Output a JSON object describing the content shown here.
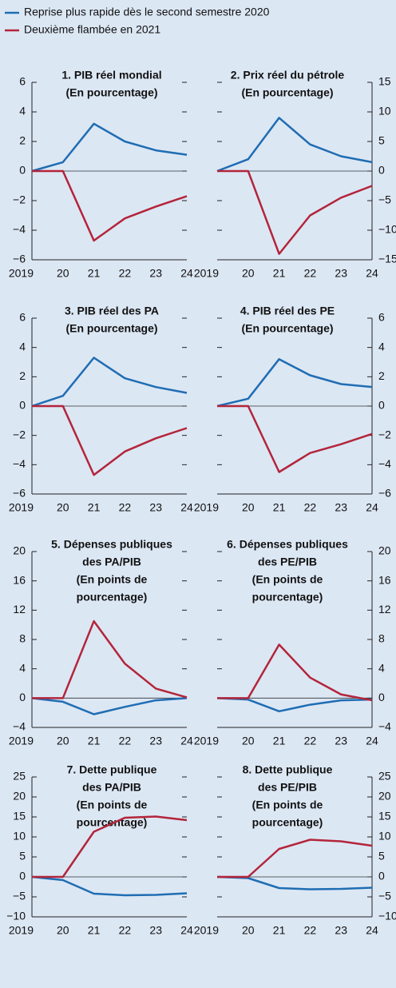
{
  "legend": [
    {
      "name": "Reprise plus rapide dès le second semestre 2020",
      "color": "#1f6db3"
    },
    {
      "name": "Deuxième flambée en 2021",
      "color": "#b3253a"
    }
  ],
  "chart_data": [
    {
      "type": "line",
      "title": [
        "1. PIB réel mondial"
      ],
      "subtitle": [
        "(En pourcentage)"
      ],
      "categories": [
        "2019",
        "20",
        "21",
        "22",
        "23",
        "24"
      ],
      "series": [
        {
          "color": "#1f6db3",
          "values": [
            0,
            0.6,
            3.2,
            2.0,
            1.4,
            1.1
          ]
        },
        {
          "color": "#b3253a",
          "values": [
            0,
            0,
            -4.7,
            -3.2,
            -2.4,
            -1.7
          ]
        }
      ],
      "ylim": [
        -6,
        6
      ],
      "yticks": [
        {
          "value": -6,
          "label": "−6"
        },
        {
          "value": -4,
          "label": "−4"
        },
        {
          "value": -2,
          "label": "−2"
        },
        0,
        2,
        4,
        6
      ]
    },
    {
      "type": "line",
      "title": [
        "2. Prix réel du pétrole"
      ],
      "subtitle": [
        "(En pourcentage)"
      ],
      "categories": [
        "2019",
        "20",
        "21",
        "22",
        "23",
        "24"
      ],
      "series": [
        {
          "color": "#1f6db3",
          "values": [
            0,
            2,
            9,
            4.5,
            2.5,
            1.5
          ]
        },
        {
          "color": "#b3253a",
          "values": [
            0,
            0,
            -14,
            -7.5,
            -4.5,
            -2.5
          ]
        }
      ],
      "ylim": [
        -15,
        15
      ],
      "yticks": [
        {
          "value": -15,
          "label": "−15"
        },
        {
          "value": -10,
          "label": "−10"
        },
        {
          "value": -5,
          "label": "−5"
        },
        0,
        5,
        10,
        15
      ]
    },
    {
      "type": "line",
      "title": [
        "3. PIB réel des PA"
      ],
      "subtitle": [
        "(En pourcentage)"
      ],
      "categories": [
        "2019",
        "20",
        "21",
        "22",
        "23",
        "24"
      ],
      "series": [
        {
          "color": "#1f6db3",
          "values": [
            0,
            0.7,
            3.3,
            1.9,
            1.3,
            0.9
          ]
        },
        {
          "color": "#b3253a",
          "values": [
            0,
            0,
            -4.7,
            -3.1,
            -2.2,
            -1.5
          ]
        }
      ],
      "ylim": [
        -6,
        6
      ],
      "yticks": [
        {
          "value": -6,
          "label": "−6"
        },
        {
          "value": -4,
          "label": "−4"
        },
        {
          "value": -2,
          "label": "−2"
        },
        0,
        2,
        4,
        6
      ]
    },
    {
      "type": "line",
      "title": [
        "4. PIB réel des PE"
      ],
      "subtitle": [
        "(En pourcentage)"
      ],
      "categories": [
        "2019",
        "20",
        "21",
        "22",
        "23",
        "24"
      ],
      "series": [
        {
          "color": "#1f6db3",
          "values": [
            0,
            0.5,
            3.2,
            2.1,
            1.5,
            1.3
          ]
        },
        {
          "color": "#b3253a",
          "values": [
            0,
            0,
            -4.5,
            -3.2,
            -2.6,
            -1.9
          ]
        }
      ],
      "ylim": [
        -6,
        6
      ],
      "yticks": [
        {
          "value": -6,
          "label": "−6"
        },
        {
          "value": -4,
          "label": "−4"
        },
        {
          "value": -2,
          "label": "−2"
        },
        0,
        2,
        4,
        6
      ]
    },
    {
      "type": "line",
      "title": [
        "5. Dépenses publiques",
        "des PA/PIB"
      ],
      "subtitle": [
        "(En points de",
        "pourcentage)"
      ],
      "categories": [
        "2019",
        "20",
        "21",
        "22",
        "23",
        "24"
      ],
      "series": [
        {
          "color": "#1f6db3",
          "values": [
            0,
            -0.5,
            -2.2,
            -1.2,
            -0.3,
            0
          ]
        },
        {
          "color": "#b3253a",
          "values": [
            0,
            0,
            10.5,
            4.7,
            1.3,
            0.1
          ]
        }
      ],
      "ylim": [
        -4,
        20
      ],
      "yticks": [
        {
          "value": -4,
          "label": "−4"
        },
        0,
        4,
        8,
        12,
        16,
        20
      ]
    },
    {
      "type": "line",
      "title": [
        "6. Dépenses publiques",
        "des PE/PIB"
      ],
      "subtitle": [
        "(En points de",
        "pourcentage)"
      ],
      "categories": [
        "2019",
        "20",
        "21",
        "22",
        "23",
        "24"
      ],
      "series": [
        {
          "color": "#1f6db3",
          "values": [
            0,
            -0.2,
            -1.8,
            -0.9,
            -0.3,
            -0.2
          ]
        },
        {
          "color": "#b3253a",
          "values": [
            0,
            0,
            7.3,
            2.8,
            0.5,
            -0.3
          ]
        }
      ],
      "ylim": [
        -4,
        20
      ],
      "yticks": [
        {
          "value": -4,
          "label": "−4"
        },
        0,
        4,
        8,
        12,
        16,
        20
      ]
    },
    {
      "type": "line",
      "title": [
        "7. Dette publique",
        "des PA/PIB"
      ],
      "subtitle": [
        "(En points de",
        "pourcentage)"
      ],
      "categories": [
        "2019",
        "20",
        "21",
        "22",
        "23",
        "24"
      ],
      "series": [
        {
          "color": "#1f6db3",
          "values": [
            0,
            -0.8,
            -4.2,
            -4.6,
            -4.5,
            -4.1
          ]
        },
        {
          "color": "#b3253a",
          "values": [
            0,
            0,
            11.3,
            14.8,
            15.1,
            14.2
          ]
        }
      ],
      "ylim": [
        -10,
        25
      ],
      "yticks": [
        {
          "value": -10,
          "label": "−10"
        },
        {
          "value": -5,
          "label": "−5"
        },
        0,
        5,
        10,
        15,
        20,
        25
      ]
    },
    {
      "type": "line",
      "title": [
        "8. Dette publique",
        "des PE/PIB"
      ],
      "subtitle": [
        "(En points de",
        "pourcentage)"
      ],
      "categories": [
        "2019",
        "20",
        "21",
        "22",
        "23",
        "24"
      ],
      "series": [
        {
          "color": "#1f6db3",
          "values": [
            0,
            -0.3,
            -2.8,
            -3.1,
            -3.0,
            -2.7
          ]
        },
        {
          "color": "#b3253a",
          "values": [
            0,
            0,
            7.0,
            9.3,
            8.9,
            7.8
          ]
        }
      ],
      "ylim": [
        -10,
        25
      ],
      "yticks": [
        {
          "value": -10,
          "label": "−10"
        },
        {
          "value": -5,
          "label": "−5"
        },
        0,
        5,
        10,
        15,
        20,
        25
      ]
    }
  ]
}
